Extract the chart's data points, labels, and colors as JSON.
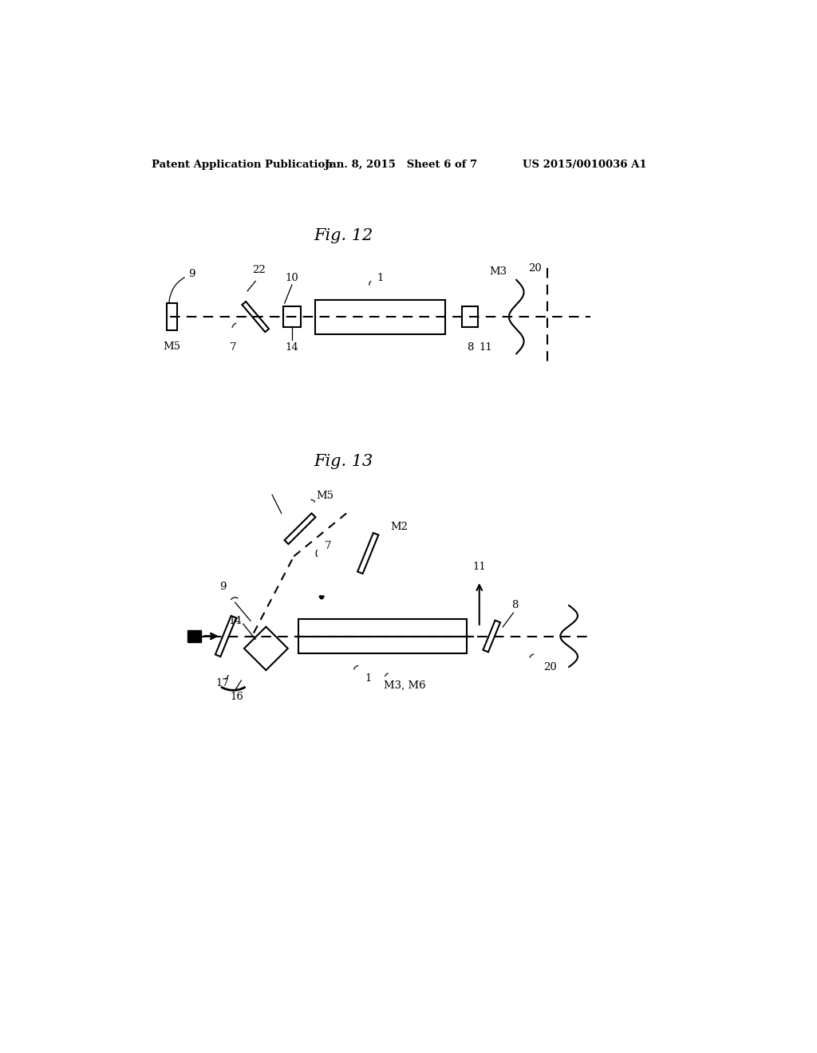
{
  "header_left": "Patent Application Publication",
  "header_mid": "Jan. 8, 2015   Sheet 6 of 7",
  "header_right": "US 2015/0010036 A1",
  "fig12_title": "Fig. 12",
  "fig13_title": "Fig. 13",
  "bg_color": "#ffffff",
  "line_color": "#000000",
  "line_width": 1.5
}
